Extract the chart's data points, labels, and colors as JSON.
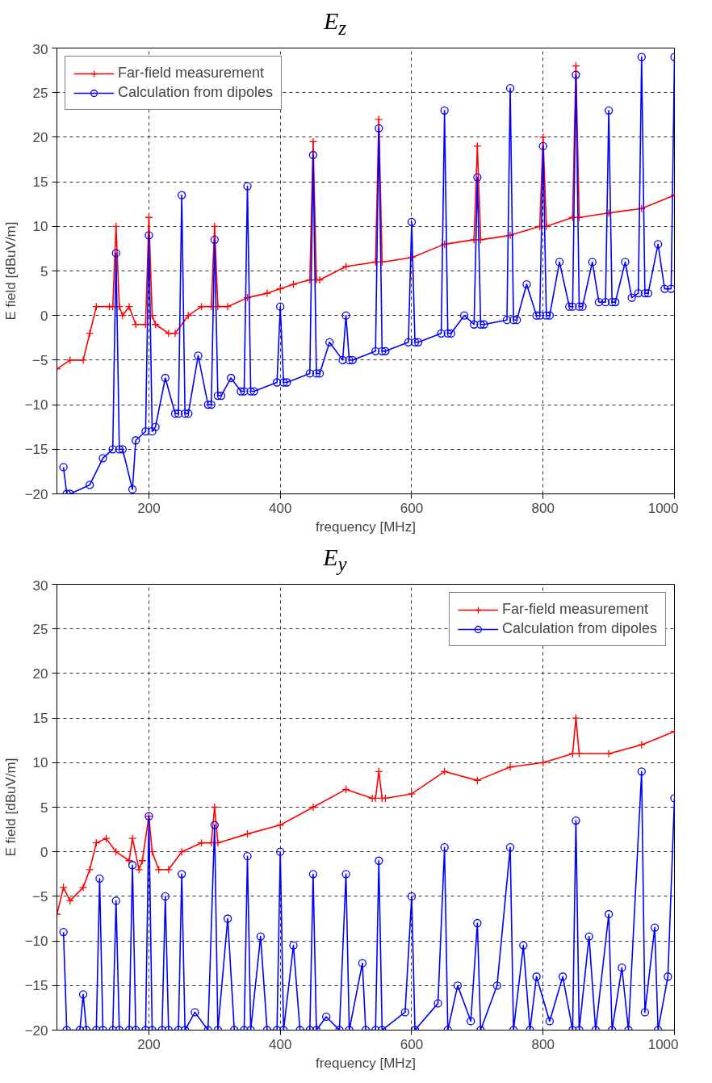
{
  "chart_data": [
    {
      "type": "line",
      "title": "E$_{z}$",
      "xlabel": "frequency [MHz]",
      "ylabel": "E field [dBuV/m]",
      "xlim": [
        60,
        1000
      ],
      "ylim": [
        -20,
        30
      ],
      "xticks": [
        200,
        400,
        600,
        800,
        1000
      ],
      "yticks": [
        -20,
        -15,
        -10,
        -5,
        0,
        5,
        10,
        15,
        20,
        25,
        30
      ],
      "grid": true,
      "legend": "top left",
      "line_style": "solid",
      "series": [
        {
          "name": "Far-field measurement",
          "color": "#ff0000",
          "marker": "cross",
          "x": [
            60,
            80,
            100,
            110,
            120,
            140,
            145,
            150,
            155,
            160,
            170,
            180,
            195,
            200,
            205,
            210,
            230,
            240,
            260,
            280,
            295,
            300,
            305,
            320,
            350,
            380,
            400,
            420,
            445,
            450,
            455,
            460,
            500,
            545,
            550,
            555,
            600,
            650,
            695,
            700,
            705,
            750,
            795,
            800,
            805,
            845,
            850,
            855,
            900,
            950,
            1000
          ],
          "values": [
            -6,
            -5,
            -5,
            -2,
            1,
            1,
            1,
            10,
            1,
            0,
            1,
            -1,
            -1,
            11,
            0,
            -1,
            -2,
            -2,
            0,
            1,
            1,
            10,
            1,
            1,
            2,
            2.5,
            3,
            3.5,
            4,
            19.5,
            4,
            4,
            5.5,
            6,
            22,
            6,
            6.5,
            8,
            8.5,
            19,
            8.5,
            9,
            10,
            20,
            10,
            11,
            28,
            11,
            11.5,
            12,
            13.5
          ]
        },
        {
          "name": "Calculation from dipoles",
          "color": "#0000ff",
          "marker": "circle",
          "x": [
            70,
            75,
            80,
            110,
            130,
            145,
            150,
            155,
            160,
            175,
            180,
            195,
            200,
            205,
            210,
            225,
            240,
            245,
            250,
            255,
            260,
            275,
            290,
            295,
            300,
            305,
            310,
            325,
            340,
            345,
            350,
            355,
            360,
            395,
            400,
            405,
            410,
            445,
            450,
            455,
            460,
            475,
            495,
            500,
            505,
            510,
            545,
            550,
            555,
            560,
            595,
            600,
            605,
            610,
            645,
            650,
            655,
            660,
            680,
            695,
            700,
            705,
            710,
            745,
            750,
            755,
            760,
            775,
            790,
            795,
            800,
            805,
            810,
            825,
            840,
            845,
            850,
            855,
            860,
            875,
            885,
            895,
            900,
            905,
            910,
            925,
            935,
            945,
            950,
            955,
            960,
            975,
            985,
            995,
            1000
          ],
          "values": [
            -17,
            -20,
            -20,
            -19,
            -16,
            -15,
            7,
            -15,
            -15,
            -19.5,
            -14,
            -13,
            9,
            -13,
            -12.5,
            -7,
            -11,
            -11,
            13.5,
            -11,
            -11,
            -4.5,
            -10,
            -10,
            8.5,
            -9,
            -9,
            -7,
            -8.5,
            -8.5,
            14.5,
            -8.5,
            -8.5,
            -7.5,
            1,
            -7.5,
            -7.5,
            -6.5,
            18,
            -6.5,
            -6.5,
            -3,
            -5,
            0,
            -5,
            -5,
            -4,
            21,
            -4,
            -4,
            -3,
            10.5,
            -3,
            -3,
            -2,
            23,
            -2,
            -2,
            0,
            -1,
            15.5,
            -1,
            -1,
            -0.5,
            25.5,
            -0.5,
            -0.5,
            3.5,
            0,
            0,
            19,
            0,
            0,
            6,
            1,
            1,
            27,
            1,
            1,
            6,
            1.5,
            1.5,
            23,
            1.5,
            1.5,
            6,
            2,
            2.5,
            29,
            2.5,
            2.5,
            8,
            3,
            3,
            29
          ]
        }
      ]
    },
    {
      "type": "line",
      "title": "E$_{y}$",
      "xlabel": "frequency [MHz]",
      "ylabel": "E field [dBuV/m]",
      "xlim": [
        60,
        1000
      ],
      "ylim": [
        -20,
        30
      ],
      "xticks": [
        200,
        400,
        600,
        800,
        1000
      ],
      "yticks": [
        -20,
        -15,
        -10,
        -5,
        0,
        5,
        10,
        15,
        20,
        25,
        30
      ],
      "grid": true,
      "legend": "top right",
      "line_style": "solid",
      "series": [
        {
          "name": "Far-field measurement",
          "color": "#ff0000",
          "marker": "cross",
          "x": [
            60,
            70,
            80,
            100,
            110,
            120,
            135,
            150,
            170,
            175,
            185,
            190,
            200,
            205,
            215,
            230,
            250,
            280,
            295,
            300,
            305,
            350,
            400,
            450,
            500,
            540,
            545,
            550,
            555,
            560,
            600,
            650,
            700,
            750,
            800,
            845,
            850,
            855,
            900,
            950,
            1000
          ],
          "values": [
            -7,
            -4,
            -5.5,
            -4,
            -2,
            1,
            1.5,
            0,
            -1,
            1.5,
            -2,
            -1,
            4,
            0,
            -2,
            -2,
            0,
            1,
            1,
            5,
            1,
            2,
            3,
            5,
            7,
            6,
            6,
            9,
            6,
            6,
            6.5,
            9,
            8,
            9.5,
            10,
            11,
            15,
            11,
            11,
            12,
            13.5
          ]
        },
        {
          "name": "Calculation from dipoles",
          "color": "#0000ff",
          "marker": "circle",
          "x": [
            70,
            75,
            95,
            100,
            105,
            120,
            125,
            130,
            145,
            150,
            155,
            170,
            175,
            180,
            195,
            200,
            205,
            220,
            225,
            230,
            245,
            250,
            255,
            270,
            290,
            300,
            305,
            320,
            330,
            345,
            350,
            355,
            370,
            380,
            395,
            400,
            405,
            420,
            430,
            445,
            450,
            455,
            470,
            490,
            500,
            505,
            525,
            530,
            545,
            550,
            555,
            590,
            600,
            605,
            640,
            650,
            655,
            670,
            690,
            700,
            705,
            730,
            750,
            755,
            770,
            780,
            790,
            810,
            830,
            845,
            850,
            855,
            870,
            880,
            900,
            905,
            920,
            930,
            950,
            955,
            970,
            975,
            990,
            1000
          ],
          "values": [
            -9,
            -20,
            -20,
            -16,
            -20,
            -20,
            -3,
            -20,
            -20,
            -5.5,
            -20,
            -20,
            -1.5,
            -20,
            -20,
            4,
            -20,
            -20,
            -5,
            -20,
            -20,
            -2.5,
            -20,
            -18,
            -20,
            3,
            -20,
            -7.5,
            -20,
            -20,
            -0.5,
            -20,
            -9.5,
            -20,
            -20,
            0,
            -20,
            -10.5,
            -20,
            -20,
            -2.5,
            -20,
            -18.5,
            -20,
            -2.5,
            -20,
            -12.5,
            -20,
            -20,
            -1,
            -20,
            -18,
            -5,
            -20,
            -17,
            0.5,
            -20,
            -15,
            -19,
            -8,
            -20,
            -15,
            0.5,
            -20,
            -10.5,
            -20,
            -14,
            -19,
            -14,
            -20,
            3.5,
            -20,
            -9.5,
            -20,
            -7,
            -20,
            -13,
            -20,
            9,
            -18,
            -8.5,
            -20,
            -14,
            6
          ]
        }
      ]
    }
  ]
}
